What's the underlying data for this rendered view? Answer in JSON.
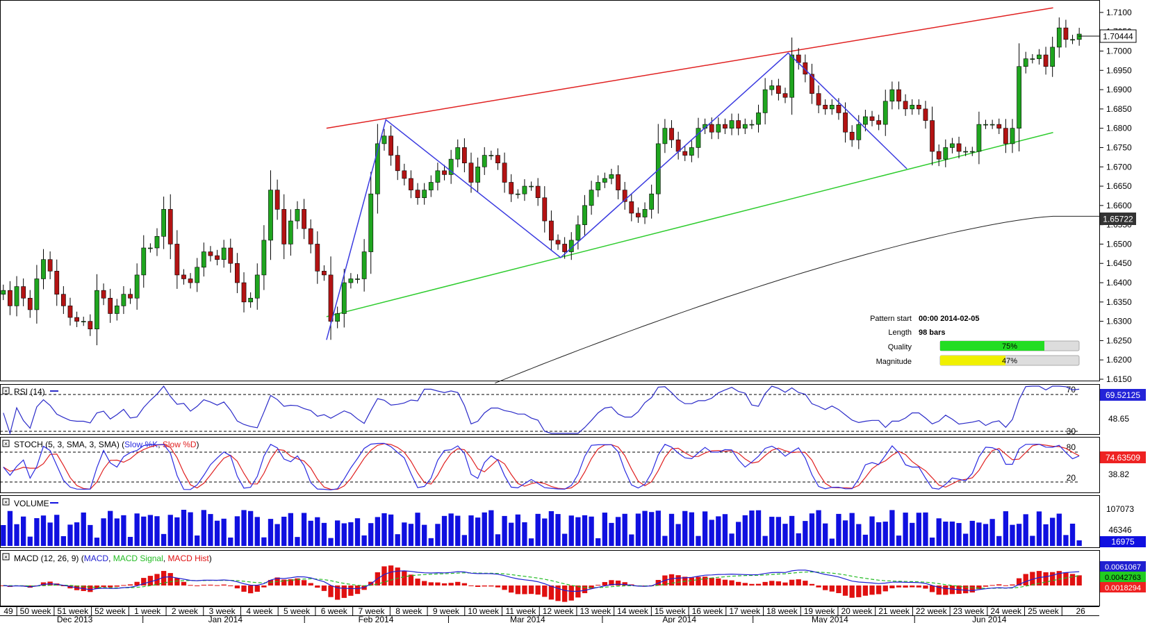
{
  "colors": {
    "up": "#1fa51f",
    "down": "#b31313",
    "resistance": "#e02020",
    "support": "#2ecc2e",
    "sma": "#222222",
    "pattern": "#3a3ae0",
    "rsi": "#2a2ac8",
    "stoch_k": "#2a2ae0",
    "stoch_d": "#e02020",
    "volume": "#1010e0",
    "macd": "#2020d0",
    "macd_signal": "#22bb22",
    "macd_hist": "#e01010"
  },
  "pattern_info": {
    "start_label": "Pattern start",
    "start_value": "00:00 2014-02-05",
    "length_label": "Length",
    "length_value": "98 bars",
    "quality_label": "Quality",
    "quality_value": "75%",
    "quality_fraction": 0.75,
    "magnitude_label": "Magnitude",
    "magnitude_value": "47%",
    "magnitude_fraction": 0.47
  },
  "panels": {
    "rsi": {
      "title": "RSI (14)",
      "levels": [
        "70",
        "30"
      ],
      "value": "69.52125",
      "mid": "48.65"
    },
    "stoch": {
      "title_prefix": "STOCH (5, 3, SMA, 3, SMA)",
      "k_label": "Slow %K",
      "d_label": "Slow %D",
      "levels": [
        "80",
        "20"
      ],
      "value": "74.63509",
      "mid": "38.82"
    },
    "volume": {
      "title": "VOLUME",
      "ticks": [
        "107073",
        "46346"
      ],
      "value": "16975"
    },
    "macd": {
      "title_prefix": "MACD (12, 26, 9)",
      "macd_label": "MACD",
      "signal_label": "MACD Signal",
      "hist_label": "MACD Hist",
      "values": [
        "0.0061067",
        "0.0042763",
        "0.0018294"
      ]
    }
  },
  "chart_data": {
    "type": "candlestick",
    "price_ticks": [
      "1.7100",
      "1.7050",
      "1.7000",
      "1.6950",
      "1.6900",
      "1.6850",
      "1.6800",
      "1.6750",
      "1.6700",
      "1.6650",
      "1.6600",
      "1.6550",
      "1.6500",
      "1.6450",
      "1.6400",
      "1.6350",
      "1.6300",
      "1.6250",
      "1.6200",
      "1.6150"
    ],
    "ylim": [
      1.615,
      1.7125
    ],
    "last_price": "1.70444",
    "sma_value": "1.65722",
    "weeks": [
      "49",
      "50 week",
      "51 week",
      "52 week",
      "1 week",
      "2 week",
      "3 week",
      "4 week",
      "5 week",
      "6 week",
      "7 week",
      "8 week",
      "9 week",
      "10 week",
      "11 week",
      "12 week",
      "13 week",
      "14 week",
      "15 week",
      "16 week",
      "17 week",
      "18 week",
      "19 week",
      "20 week",
      "21 week",
      "22 week",
      "23 week",
      "24 week",
      "25 week",
      "26"
    ],
    "months": [
      "Dec 2013",
      "Jan 2014",
      "Feb 2014",
      "Mar 2014",
      "Apr 2014",
      "May 2014",
      "Jun 2014"
    ],
    "closes": [
      1.638,
      1.634,
      1.639,
      1.636,
      1.633,
      1.641,
      1.646,
      1.643,
      1.637,
      1.634,
      1.631,
      1.63,
      1.63,
      1.628,
      1.638,
      1.636,
      1.632,
      1.634,
      1.637,
      1.636,
      1.642,
      1.649,
      1.649,
      1.652,
      1.659,
      1.65,
      1.642,
      1.641,
      1.64,
      1.644,
      1.648,
      1.647,
      1.646,
      1.649,
      1.645,
      1.64,
      1.635,
      1.636,
      1.642,
      1.651,
      1.664,
      1.659,
      1.65,
      1.656,
      1.659,
      1.654,
      1.65,
      1.643,
      1.642,
      1.63,
      1.632,
      1.64,
      1.641,
      1.641,
      1.648,
      1.663,
      1.676,
      1.678,
      1.673,
      1.669,
      1.667,
      1.664,
      1.662,
      1.664,
      1.666,
      1.669,
      1.668,
      1.672,
      1.675,
      1.671,
      1.666,
      1.67,
      1.673,
      1.673,
      1.671,
      1.666,
      1.663,
      1.663,
      1.665,
      1.665,
      1.662,
      1.656,
      1.651,
      1.65,
      1.648,
      1.651,
      1.655,
      1.66,
      1.664,
      1.666,
      1.667,
      1.668,
      1.664,
      1.661,
      1.658,
      1.657,
      1.659,
      1.663,
      1.676,
      1.68,
      1.677,
      1.674,
      1.673,
      1.675,
      1.68,
      1.681,
      1.679,
      1.681,
      1.68,
      1.682,
      1.68,
      1.681,
      1.681,
      1.684,
      1.69,
      1.691,
      1.689,
      1.688,
      1.699,
      1.697,
      1.694,
      1.689,
      1.686,
      1.685,
      1.686,
      1.684,
      1.679,
      1.677,
      1.681,
      1.683,
      1.682,
      1.681,
      1.687,
      1.69,
      1.687,
      1.685,
      1.686,
      1.685,
      1.682,
      1.674,
      1.672,
      1.675,
      1.676,
      1.674,
      1.674,
      1.674,
      1.681,
      1.681,
      1.681,
      1.68,
      1.676,
      1.68,
      1.696,
      1.698,
      1.698,
      1.699,
      1.696,
      1.701,
      1.706,
      1.703,
      1.703,
      1.7044
    ],
    "sma_start": 1.614,
    "sma_end": 1.6572,
    "resistance_line": [
      [
        0.297,
        1.68
      ],
      [
        0.958,
        1.7112
      ]
    ],
    "support_line": [
      [
        0.297,
        1.6312
      ],
      [
        0.958,
        1.6789
      ]
    ],
    "pattern_points": [
      [
        0.297,
        1.6252
      ],
      [
        0.351,
        1.6822
      ],
      [
        0.51,
        1.6465
      ],
      [
        0.717,
        1.6995
      ],
      [
        0.825,
        1.6695
      ]
    ]
  }
}
